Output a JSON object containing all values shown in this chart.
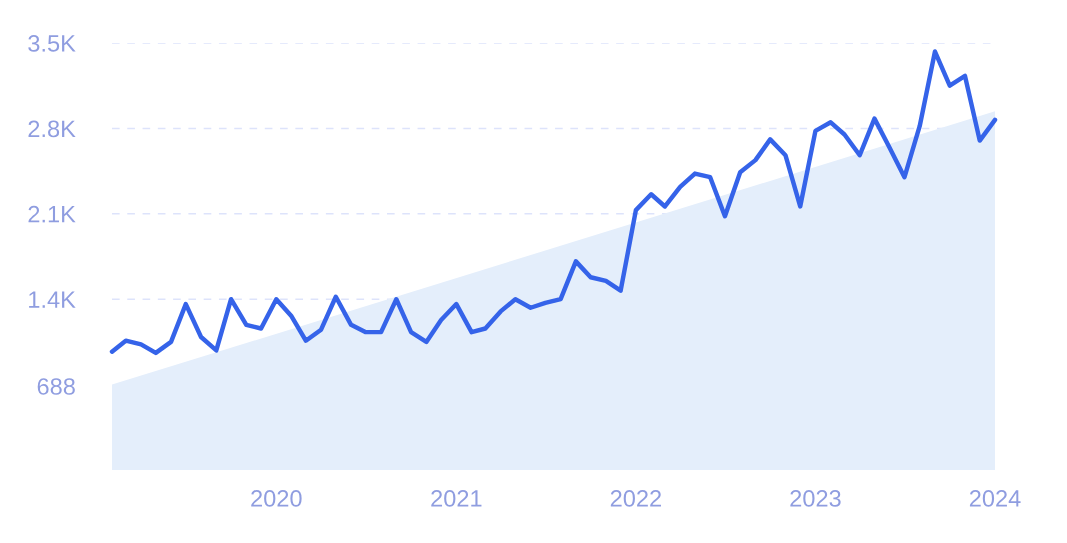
{
  "chart_data": {
    "type": "line",
    "x": [
      "2019-02",
      "2019-03",
      "2019-04",
      "2019-05",
      "2019-06",
      "2019-07",
      "2019-08",
      "2019-09",
      "2019-10",
      "2019-11",
      "2019-12",
      "2020-01",
      "2020-02",
      "2020-03",
      "2020-04",
      "2020-05",
      "2020-06",
      "2020-07",
      "2020-08",
      "2020-09",
      "2020-10",
      "2020-11",
      "2020-12",
      "2021-01",
      "2021-02",
      "2021-03",
      "2021-04",
      "2021-05",
      "2021-06",
      "2021-07",
      "2021-08",
      "2021-09",
      "2021-10",
      "2021-11",
      "2021-12",
      "2022-01",
      "2022-02",
      "2022-03",
      "2022-04",
      "2022-05",
      "2022-06",
      "2022-07",
      "2022-08",
      "2022-09",
      "2022-10",
      "2022-11",
      "2022-12",
      "2023-01",
      "2023-02",
      "2023-03",
      "2023-04",
      "2023-05",
      "2023-06",
      "2023-07",
      "2023-08",
      "2023-09",
      "2023-10",
      "2023-11",
      "2023-12",
      "2024-01"
    ],
    "series": [
      {
        "type": "area",
        "x": [
          "2019-02",
          "2024-01"
        ],
        "values": [
          700,
          2940
        ],
        "color": "#e4eefb"
      },
      {
        "color": "#3563e9",
        "values": [
          970,
          1060,
          1030,
          960,
          1050,
          1360,
          1090,
          980,
          1400,
          1190,
          1160,
          1400,
          1260,
          1060,
          1150,
          1420,
          1190,
          1130,
          1130,
          1400,
          1130,
          1050,
          1230,
          1360,
          1130,
          1160,
          1300,
          1400,
          1330,
          1370,
          1400,
          1710,
          1580,
          1550,
          1470,
          2130,
          2260,
          2160,
          2320,
          2430,
          2400,
          2080,
          2440,
          2540,
          2710,
          2580,
          2160,
          2780,
          2850,
          2750,
          2580,
          2880,
          2640,
          2400,
          2820,
          3430,
          3150,
          3230,
          2700,
          2870
        ]
      }
    ],
    "xlim": [
      "2019-02",
      "2024-01"
    ],
    "xticks": [
      {
        "value": "2020-01",
        "label": "2020"
      },
      {
        "value": "2021-01",
        "label": "2021"
      },
      {
        "value": "2022-01",
        "label": "2022"
      },
      {
        "value": "2023-01",
        "label": "2023"
      },
      {
        "value": "2024-01",
        "label": "2024"
      }
    ],
    "ylim": [
      0,
      3500
    ],
    "yticks": [
      688,
      {
        "value": 1400,
        "label": "1.4K"
      },
      {
        "value": 2100,
        "label": "2.1K"
      },
      {
        "value": 2800,
        "label": "2.8K"
      },
      {
        "value": 3500,
        "label": "3.5K"
      }
    ],
    "grid": "y",
    "line_style": "solid"
  }
}
